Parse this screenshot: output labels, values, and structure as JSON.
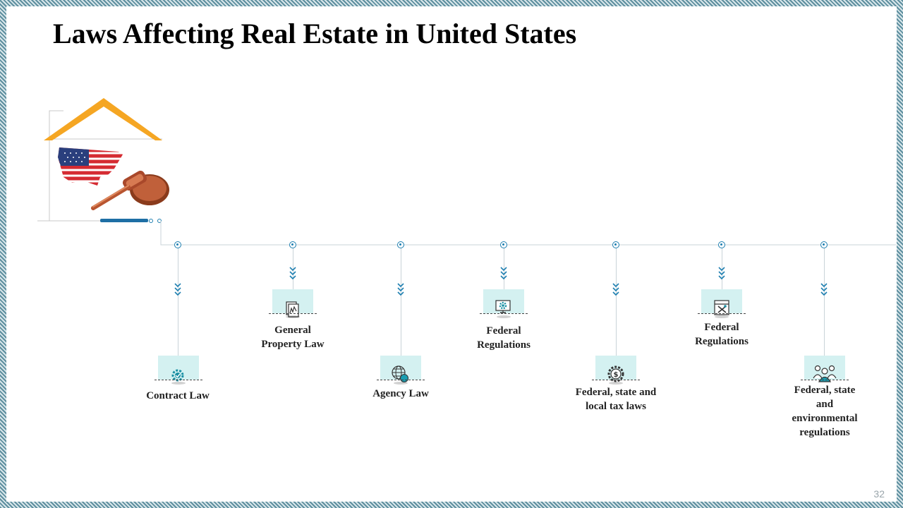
{
  "slide": {
    "title": "Laws Affecting Real Estate in United States",
    "page_number": "32"
  },
  "colors": {
    "accent_blue": "#1e7fb0",
    "roof_orange": "#f5a623",
    "icon_box_bg": "#d4f1f1",
    "border": "#6f9aa8"
  },
  "items": [
    {
      "label_1": "Contract  Law",
      "label_2": "",
      "label_3": "",
      "label_4": "",
      "icon": "gear-check-icon"
    },
    {
      "label_1": "General",
      "label_2": "Property  Law",
      "label_3": "",
      "label_4": "",
      "icon": "document-chart-icon"
    },
    {
      "label_1": "Agency Law",
      "label_2": "",
      "label_3": "",
      "label_4": "",
      "icon": "globe-dollar-icon"
    },
    {
      "label_1": "Federal",
      "label_2": "Regulations",
      "label_3": "",
      "label_4": "",
      "icon": "monitor-gear-icon"
    },
    {
      "label_1": "Federal, state and",
      "label_2": "local tax laws",
      "label_3": "",
      "label_4": "",
      "icon": "gear-dollar-icon"
    },
    {
      "label_1": "Federal",
      "label_2": "Regulations",
      "label_3": "",
      "label_4": "",
      "icon": "tools-window-icon"
    },
    {
      "label_1": "Federal, state",
      "label_2": "and",
      "label_3": "environmental",
      "label_4": "regulations",
      "icon": "people-group-icon"
    }
  ]
}
